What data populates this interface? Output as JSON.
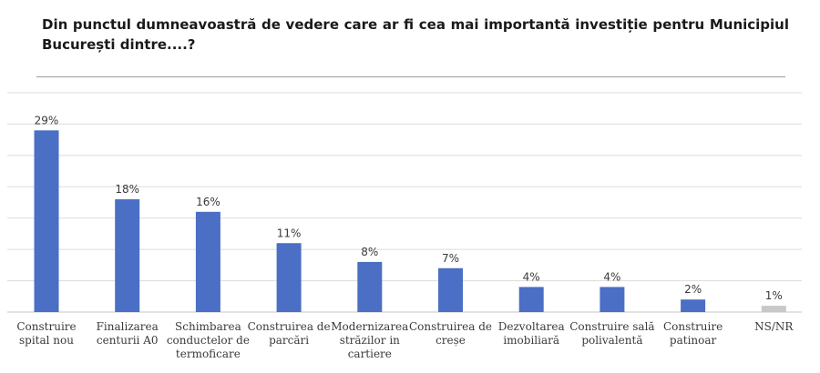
{
  "title": "Din punctul dumneavoastră de vedere care ar fi cea mai importantă investiție pentru Municipiul București dintre....?",
  "chart_data": {
    "type": "bar",
    "categories": [
      [
        "Construire",
        "spital nou"
      ],
      [
        "Finalizarea",
        "centurii A0"
      ],
      [
        "Schimbarea",
        "conductelor de",
        "termoficare"
      ],
      [
        "Construirea de",
        "parcări"
      ],
      [
        "Modernizarea",
        "străzilor in",
        "cartiere"
      ],
      [
        "Construirea de",
        "creșe"
      ],
      [
        "Dezvoltarea",
        "imobiliară"
      ],
      [
        "Construire sală",
        "polivalentă"
      ],
      [
        "Construire",
        "patinoar"
      ],
      [
        "NS/NR"
      ]
    ],
    "values": [
      29,
      18,
      16,
      11,
      8,
      7,
      4,
      4,
      2,
      1
    ],
    "value_labels": [
      "29%",
      "18%",
      "16%",
      "11%",
      "8%",
      "7%",
      "4%",
      "4%",
      "2%",
      "1%"
    ],
    "ylim": [
      0,
      35
    ],
    "grid": true,
    "colors": {
      "bar": "#4a6fc4",
      "highlight_last": "#c8c8c8",
      "grid": "#dcdcdc"
    }
  }
}
